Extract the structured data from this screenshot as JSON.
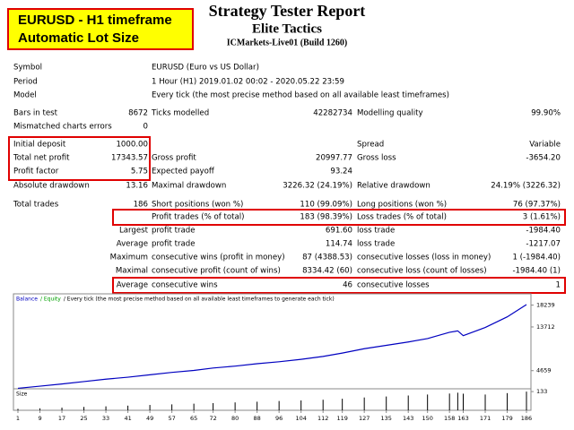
{
  "header": {
    "badge": [
      "EURUSD - H1 timeframe",
      "Automatic Lot Size"
    ],
    "title": "Strategy Tester Report",
    "subtitle": "Elite Tactics",
    "server": "ICMarkets-Live01 (Build 1260)"
  },
  "report": {
    "rows": [
      {
        "label": "Symbol",
        "text": "EURUSD (Euro vs US Dollar)"
      },
      {
        "label": "Period",
        "text": "1 Hour (H1) 2019.01.02 00:02 - 2020.05.22 23:59"
      },
      {
        "label": "Model",
        "text": "Every tick (the most precise method based on all available least timeframes)"
      },
      {
        "label": "Bars in test",
        "value": "8672",
        "label2": "Ticks modelled",
        "value2": "42282734",
        "label3": "Modelling quality",
        "value3": "99.90%"
      },
      {
        "label": "Mismatched charts errors",
        "value": "0"
      },
      {
        "label": "Initial deposit",
        "value": "1000.00",
        "label3": "Spread",
        "value3": "Variable"
      },
      {
        "label": "Total net profit",
        "value": "17343.57",
        "label2": "Gross profit",
        "value2": "20997.77",
        "label3": "Gross loss",
        "value3": "-3654.20"
      },
      {
        "label": "Profit factor",
        "value": "5.75",
        "label2": "Expected payoff",
        "value2": "93.24"
      },
      {
        "label": "Absolute drawdown",
        "value": "13.16",
        "label2": "Maximal drawdown",
        "value2": "3226.32 (24.19%)",
        "label3": "Relative drawdown",
        "value3": "24.19% (3226.32)"
      },
      {
        "label": "Total trades",
        "value": "186",
        "label2": "Short positions (won %)",
        "value2": "110 (99.09%)",
        "label3": "Long positions (won %)",
        "value3": "76 (97.37%)"
      },
      {
        "label2": "Profit trades (% of total)",
        "value2": "183 (98.39%)",
        "label3": "Loss trades (% of total)",
        "value3": "3 (1.61%)"
      },
      {
        "value": "Largest",
        "label2": "profit trade",
        "value2": "691.60",
        "label3": "loss trade",
        "value3": "-1984.40"
      },
      {
        "value": "Average",
        "label2": "profit trade",
        "value2": "114.74",
        "label3": "loss trade",
        "value3": "-1217.07"
      },
      {
        "value": "Maximum",
        "label2": "consecutive wins (profit in money)",
        "value2": "87 (4388.53)",
        "label3": "consecutive losses (loss in money)",
        "value3": "1 (-1984.40)"
      },
      {
        "value": "Maximal",
        "label2": "consecutive profit (count of wins)",
        "value2": "8334.42 (60)",
        "label3": "consecutive loss (count of losses)",
        "value3": "-1984.40 (1)"
      },
      {
        "value": "Average",
        "label2": "consecutive wins",
        "value2": "46",
        "label3": "consecutive losses",
        "value3": "1"
      }
    ]
  },
  "chart": {
    "type": "line",
    "legend": [
      {
        "text": "Balance",
        "color": "#0000c0"
      },
      {
        "text": "/ Equity",
        "color": "#00a000"
      },
      {
        "text": "/ Every tick (the most precise method based on all available least timeframes to generate each tick)",
        "color": "#000000"
      }
    ],
    "x": [
      1,
      9,
      17,
      25,
      33,
      41,
      49,
      57,
      65,
      72,
      80,
      88,
      96,
      104,
      112,
      119,
      127,
      135,
      143,
      150,
      158,
      161,
      163,
      171,
      179,
      186
    ],
    "series": [
      {
        "name": "Balance",
        "color": "#0000c0",
        "values": [
          1000,
          1450,
          1900,
          2400,
          2900,
          3300,
          3800,
          4300,
          4700,
          5200,
          5600,
          6100,
          6500,
          7000,
          7600,
          8300,
          9200,
          9900,
          10600,
          11300,
          12600,
          12900,
          11900,
          13600,
          15800,
          18343
        ]
      }
    ],
    "xlim": [
      1,
      186
    ],
    "ylim": [
      900,
      20200
    ],
    "yticks": [
      18239,
      13712,
      4659
    ],
    "xticks": [
      1,
      9,
      17,
      25,
      33,
      41,
      49,
      57,
      65,
      72,
      80,
      88,
      96,
      104,
      112,
      119,
      127,
      135,
      143,
      150,
      158,
      163,
      171,
      179,
      186
    ],
    "size": {
      "label": "Size",
      "color": "#000000",
      "values": [
        10,
        14,
        19,
        24,
        28,
        33,
        38,
        42,
        47,
        51,
        56,
        61,
        66,
        70,
        75,
        82,
        91,
        98,
        105,
        112,
        119,
        125,
        118,
        112,
        122,
        133
      ],
      "ylim": [
        0,
        140
      ],
      "yticks": [
        133
      ]
    }
  }
}
